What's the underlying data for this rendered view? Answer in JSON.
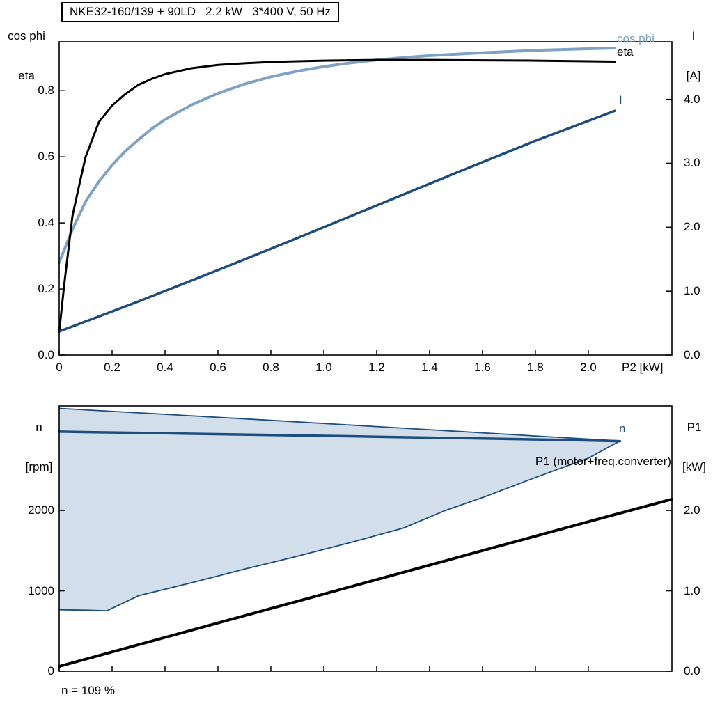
{
  "colors": {
    "black": "#000000",
    "dark_blue": "#1c4d7e",
    "light_blue": "#7da2c4",
    "fill_blue": "#d2dee9",
    "frame": "#000000"
  },
  "chart_data": [
    {
      "id": "top",
      "type": "line",
      "title": "NKE32-160/139 + 90LD   2.2 kW   3*400 V, 50 Hz",
      "x_axis": {
        "label": "P2 [kW]",
        "range": [
          0,
          2.316
        ],
        "ticks": [
          0,
          0.2,
          0.4,
          0.6,
          0.8,
          1.0,
          1.2,
          1.4,
          1.6,
          1.8,
          2.0
        ],
        "tick_labels": [
          "0",
          "0.2",
          "0.4",
          "0.6",
          "0.8",
          "1.0",
          "1.2",
          "1.4",
          "1.6",
          "1.8",
          "2.0"
        ]
      },
      "y_left": {
        "title_lines": [
          "cos phi",
          "eta"
        ],
        "range": [
          0,
          0.948
        ],
        "ticks": [
          0,
          0.2,
          0.4,
          0.6,
          0.8
        ],
        "tick_labels": [
          "0.0",
          "0.2",
          "0.4",
          "0.6",
          "0.8"
        ]
      },
      "y_right": {
        "title_lines": [
          "I",
          "[A]"
        ],
        "range": [
          0,
          4.9
        ],
        "ticks": [
          0,
          1,
          2,
          3,
          4
        ],
        "tick_labels": [
          "0.0",
          "1.0",
          "2.0",
          "3.0",
          "4.0"
        ]
      },
      "series": [
        {
          "name": "cos_phi",
          "label": "cos phi",
          "axis": "left",
          "color": "light_blue",
          "width": 4,
          "points": [
            [
              0,
              0.28
            ],
            [
              0.05,
              0.38
            ],
            [
              0.1,
              0.465
            ],
            [
              0.15,
              0.525
            ],
            [
              0.2,
              0.575
            ],
            [
              0.25,
              0.617
            ],
            [
              0.3,
              0.652
            ],
            [
              0.35,
              0.685
            ],
            [
              0.4,
              0.713
            ],
            [
              0.5,
              0.757
            ],
            [
              0.6,
              0.792
            ],
            [
              0.7,
              0.82
            ],
            [
              0.8,
              0.842
            ],
            [
              0.9,
              0.859
            ],
            [
              1.0,
              0.873
            ],
            [
              1.1,
              0.884
            ],
            [
              1.2,
              0.893
            ],
            [
              1.3,
              0.9
            ],
            [
              1.4,
              0.906
            ],
            [
              1.6,
              0.915
            ],
            [
              1.8,
              0.922
            ],
            [
              2.0,
              0.927
            ],
            [
              2.1,
              0.929
            ]
          ]
        },
        {
          "name": "eta",
          "label": "eta",
          "axis": "left",
          "color": "black",
          "width": 3,
          "points": [
            [
              0,
              0.07
            ],
            [
              0.02,
              0.22
            ],
            [
              0.05,
              0.42
            ],
            [
              0.08,
              0.53
            ],
            [
              0.1,
              0.6
            ],
            [
              0.15,
              0.705
            ],
            [
              0.2,
              0.755
            ],
            [
              0.25,
              0.79
            ],
            [
              0.3,
              0.818
            ],
            [
              0.35,
              0.836
            ],
            [
              0.4,
              0.85
            ],
            [
              0.5,
              0.868
            ],
            [
              0.6,
              0.878
            ],
            [
              0.7,
              0.883
            ],
            [
              0.8,
              0.887
            ],
            [
              0.9,
              0.889
            ],
            [
              1.0,
              0.891
            ],
            [
              1.2,
              0.893
            ],
            [
              1.4,
              0.893
            ],
            [
              1.6,
              0.892
            ],
            [
              1.8,
              0.891
            ],
            [
              2.0,
              0.889
            ],
            [
              2.1,
              0.888
            ]
          ]
        },
        {
          "name": "current",
          "label": "I",
          "axis": "right",
          "color": "dark_blue",
          "width": 3.5,
          "points": [
            [
              0,
              0.37
            ],
            [
              0.3,
              0.84
            ],
            [
              0.6,
              1.33
            ],
            [
              0.9,
              1.83
            ],
            [
              1.2,
              2.34
            ],
            [
              1.5,
              2.85
            ],
            [
              1.8,
              3.35
            ],
            [
              2.1,
              3.82
            ]
          ]
        }
      ]
    },
    {
      "id": "bottom",
      "type": "line",
      "x_axis": {
        "label": "",
        "range": [
          0,
          2.316
        ],
        "ticks": [
          0,
          0.2,
          0.4,
          0.6,
          0.8,
          1.0,
          1.2,
          1.4,
          1.6,
          1.8,
          2.0
        ],
        "tick_labels": []
      },
      "y_left": {
        "title_lines": [
          "n",
          "[rpm]"
        ],
        "range": [
          0,
          3300
        ],
        "ticks": [
          0,
          1000,
          2000
        ],
        "tick_labels": [
          "0",
          "1000",
          "2000"
        ]
      },
      "y_right": {
        "title_lines": [
          "P1",
          "[kW]"
        ],
        "range": [
          0,
          3.3
        ],
        "ticks": [
          0,
          1,
          2
        ],
        "tick_labels": [
          "0.0",
          "1.0",
          "2.0"
        ]
      },
      "envelope": {
        "fill": "fill_blue",
        "border_color": "dark_blue",
        "border_width": 1.8,
        "upper": [
          [
            0,
            3270
          ],
          [
            0.4,
            3196
          ],
          [
            0.8,
            3121
          ],
          [
            1.2,
            3044
          ],
          [
            1.6,
            2966
          ],
          [
            1.9,
            2907
          ],
          [
            2.12,
            2865
          ]
        ],
        "lower": [
          [
            0,
            765
          ],
          [
            0.1,
            760
          ],
          [
            0.18,
            752
          ],
          [
            0.3,
            940
          ],
          [
            0.4,
            1020
          ],
          [
            0.5,
            1100
          ],
          [
            0.7,
            1270
          ],
          [
            0.9,
            1430
          ],
          [
            1.1,
            1600
          ],
          [
            1.3,
            1780
          ],
          [
            1.46,
            2000
          ],
          [
            1.6,
            2160
          ],
          [
            1.8,
            2410
          ],
          [
            2.0,
            2650
          ],
          [
            2.12,
            2865
          ]
        ]
      },
      "series": [
        {
          "name": "n",
          "label": "n",
          "axis": "left",
          "color": "dark_blue",
          "width": 3.5,
          "points": [
            [
              0,
              2980
            ],
            [
              0.4,
              2960
            ],
            [
              0.8,
              2939
            ],
            [
              1.2,
              2917
            ],
            [
              1.6,
              2895
            ],
            [
              1.9,
              2877
            ],
            [
              2.12,
              2862
            ]
          ]
        },
        {
          "name": "p1",
          "label": "P1 (motor+freq.converter)",
          "axis": "right",
          "color": "black",
          "width": 4,
          "points": [
            [
              0,
              0.06
            ],
            [
              0.4,
              0.42
            ],
            [
              0.8,
              0.78
            ],
            [
              1.2,
              1.14
            ],
            [
              1.6,
              1.5
            ],
            [
              2.0,
              1.86
            ],
            [
              2.316,
              2.14
            ]
          ]
        }
      ],
      "annotation": "n = 109 %"
    }
  ]
}
